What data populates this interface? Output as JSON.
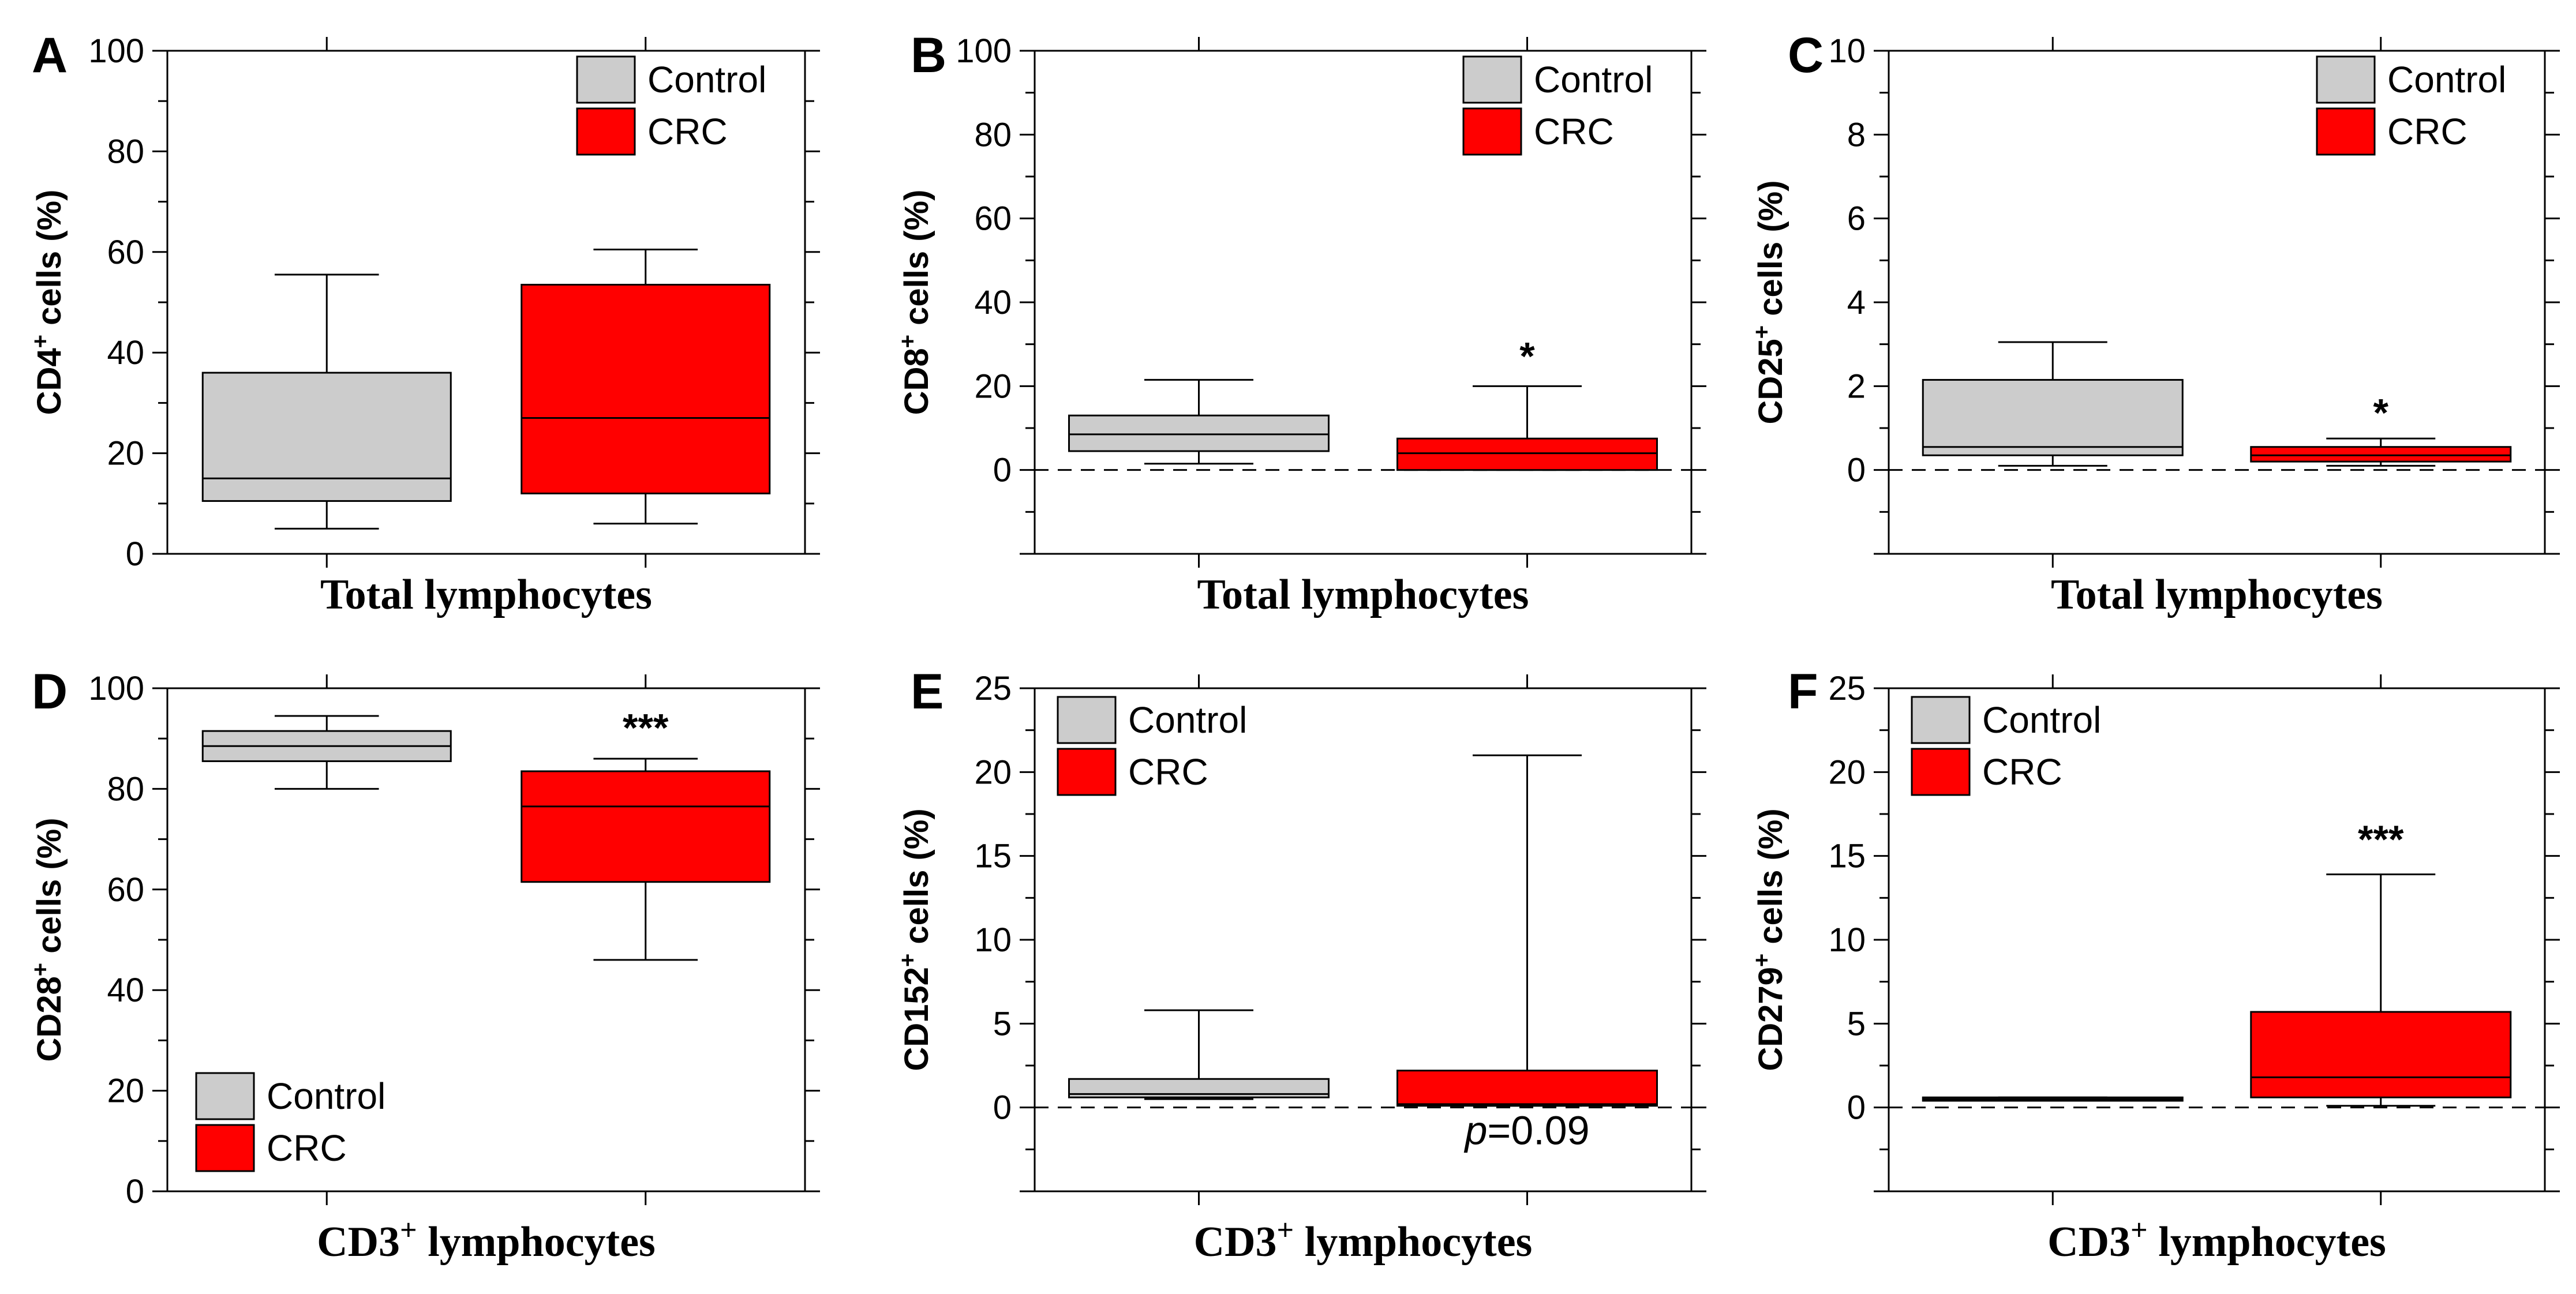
{
  "figure": {
    "title": ""
  },
  "colors": {
    "control": "#cccccc",
    "crc": "#ff0000",
    "outline": "#000000"
  },
  "chart_data": [
    {
      "panel": "A",
      "type": "box",
      "ylabel": "CD4",
      "ylabel_sup": "+",
      "ylabel_suffix": " cells (%)",
      "xlabel": "Total lymphocytes",
      "xlabel_sup": "",
      "xlabel_suffix": "",
      "ylim": [
        0,
        100
      ],
      "yticks": [
        0,
        20,
        40,
        60,
        80,
        100
      ],
      "zero_line": false,
      "legend": {
        "position": "top-right",
        "entries": [
          "Control",
          "CRC"
        ]
      },
      "series": [
        {
          "name": "Control",
          "whisker_low": 5,
          "q1": 10.5,
          "median": 15,
          "q3": 36,
          "whisker_high": 55.5
        },
        {
          "name": "CRC",
          "whisker_low": 6,
          "q1": 12,
          "median": 27,
          "q3": 53.5,
          "whisker_high": 60.5
        }
      ],
      "annotations": []
    },
    {
      "panel": "B",
      "type": "box",
      "ylabel": "CD8",
      "ylabel_sup": "+",
      "ylabel_suffix": " cells (%)",
      "xlabel": "Total lymphocytes",
      "xlabel_sup": "",
      "xlabel_suffix": "",
      "ylim": [
        -20,
        100
      ],
      "yticks": [
        0,
        20,
        40,
        60,
        80,
        100
      ],
      "zero_line": true,
      "legend": {
        "position": "top-right",
        "entries": [
          "Control",
          "CRC"
        ]
      },
      "series": [
        {
          "name": "Control",
          "whisker_low": 1.5,
          "q1": 4.5,
          "median": 8.5,
          "q3": 13,
          "whisker_high": 21.5
        },
        {
          "name": "CRC",
          "whisker_low": 0,
          "q1": 0,
          "median": 4,
          "q3": 7.5,
          "whisker_high": 20
        }
      ],
      "annotations": [
        {
          "text": "*",
          "series": "CRC",
          "y": 24
        }
      ]
    },
    {
      "panel": "C",
      "type": "box",
      "ylabel": "CD25",
      "ylabel_sup": "+",
      "ylabel_suffix": " cells (%)",
      "xlabel": "Total lymphocytes",
      "xlabel_sup": "",
      "xlabel_suffix": "",
      "ylim": [
        -2,
        10
      ],
      "yticks": [
        0,
        2,
        4,
        6,
        8,
        10
      ],
      "zero_line": true,
      "legend": {
        "position": "top-right",
        "entries": [
          "Control",
          "CRC"
        ]
      },
      "series": [
        {
          "name": "Control",
          "whisker_low": 0.1,
          "q1": 0.35,
          "median": 0.55,
          "q3": 2.15,
          "whisker_high": 3.05
        },
        {
          "name": "CRC",
          "whisker_low": 0.1,
          "q1": 0.2,
          "median": 0.35,
          "q3": 0.55,
          "whisker_high": 0.75
        }
      ],
      "annotations": [
        {
          "text": "*",
          "series": "CRC",
          "y": 1.05
        }
      ]
    },
    {
      "panel": "D",
      "type": "box",
      "ylabel": "CD28",
      "ylabel_sup": "+",
      "ylabel_suffix": " cells (%)",
      "xlabel": "CD3",
      "xlabel_sup": "+",
      "xlabel_suffix": " lymphocytes",
      "ylim": [
        0,
        100
      ],
      "yticks": [
        0,
        20,
        40,
        60,
        80,
        100
      ],
      "zero_line": false,
      "legend": {
        "position": "bottom-left",
        "entries": [
          "Control",
          "CRC"
        ]
      },
      "series": [
        {
          "name": "Control",
          "whisker_low": 80,
          "q1": 85.5,
          "median": 88.5,
          "q3": 91.5,
          "whisker_high": 94.5
        },
        {
          "name": "CRC",
          "whisker_low": 46,
          "q1": 61.5,
          "median": 76.5,
          "q3": 83.5,
          "whisker_high": 86
        }
      ],
      "annotations": [
        {
          "text": "***",
          "series": "CRC",
          "y": 89.5
        }
      ]
    },
    {
      "panel": "E",
      "type": "box",
      "ylabel": "CD152",
      "ylabel_sup": "+",
      "ylabel_suffix": " cells (%)",
      "xlabel": "CD3",
      "xlabel_sup": "+",
      "xlabel_suffix": " lymphocytes",
      "ylim": [
        -5,
        25
      ],
      "yticks": [
        0,
        5,
        10,
        15,
        20,
        25
      ],
      "zero_line": true,
      "legend": {
        "position": "top-left",
        "entries": [
          "Control",
          "CRC"
        ]
      },
      "series": [
        {
          "name": "Control",
          "whisker_low": 0.5,
          "q1": 0.6,
          "median": 0.8,
          "q3": 1.7,
          "whisker_high": 5.8
        },
        {
          "name": "CRC",
          "whisker_low": 0.1,
          "q1": 0.1,
          "median": 0.2,
          "q3": 2.2,
          "whisker_high": 21
        }
      ],
      "annotations": [
        {
          "text": "p=0.09",
          "prefix": "p",
          "suffix": "=0.09",
          "series": "CRC",
          "y": -2.2
        }
      ]
    },
    {
      "panel": "F",
      "type": "box",
      "ylabel": "CD279",
      "ylabel_sup": "+",
      "ylabel_suffix": " cells (%)",
      "xlabel": "CD3",
      "xlabel_sup": "+",
      "xlabel_suffix": " lymphocytes",
      "ylim": [
        -5,
        25
      ],
      "yticks": [
        0,
        5,
        10,
        15,
        20,
        25
      ],
      "zero_line": true,
      "legend": {
        "position": "top-left",
        "entries": [
          "Control",
          "CRC"
        ]
      },
      "series": [
        {
          "name": "Control",
          "whisker_low": 0.4,
          "q1": 0.4,
          "median": 0.5,
          "q3": 0.6,
          "whisker_high": 0.6
        },
        {
          "name": "CRC",
          "whisker_low": 0.1,
          "q1": 0.6,
          "median": 1.8,
          "q3": 5.7,
          "whisker_high": 13.9
        }
      ],
      "annotations": [
        {
          "text": "***",
          "series": "CRC",
          "y": 15.2
        }
      ]
    }
  ]
}
